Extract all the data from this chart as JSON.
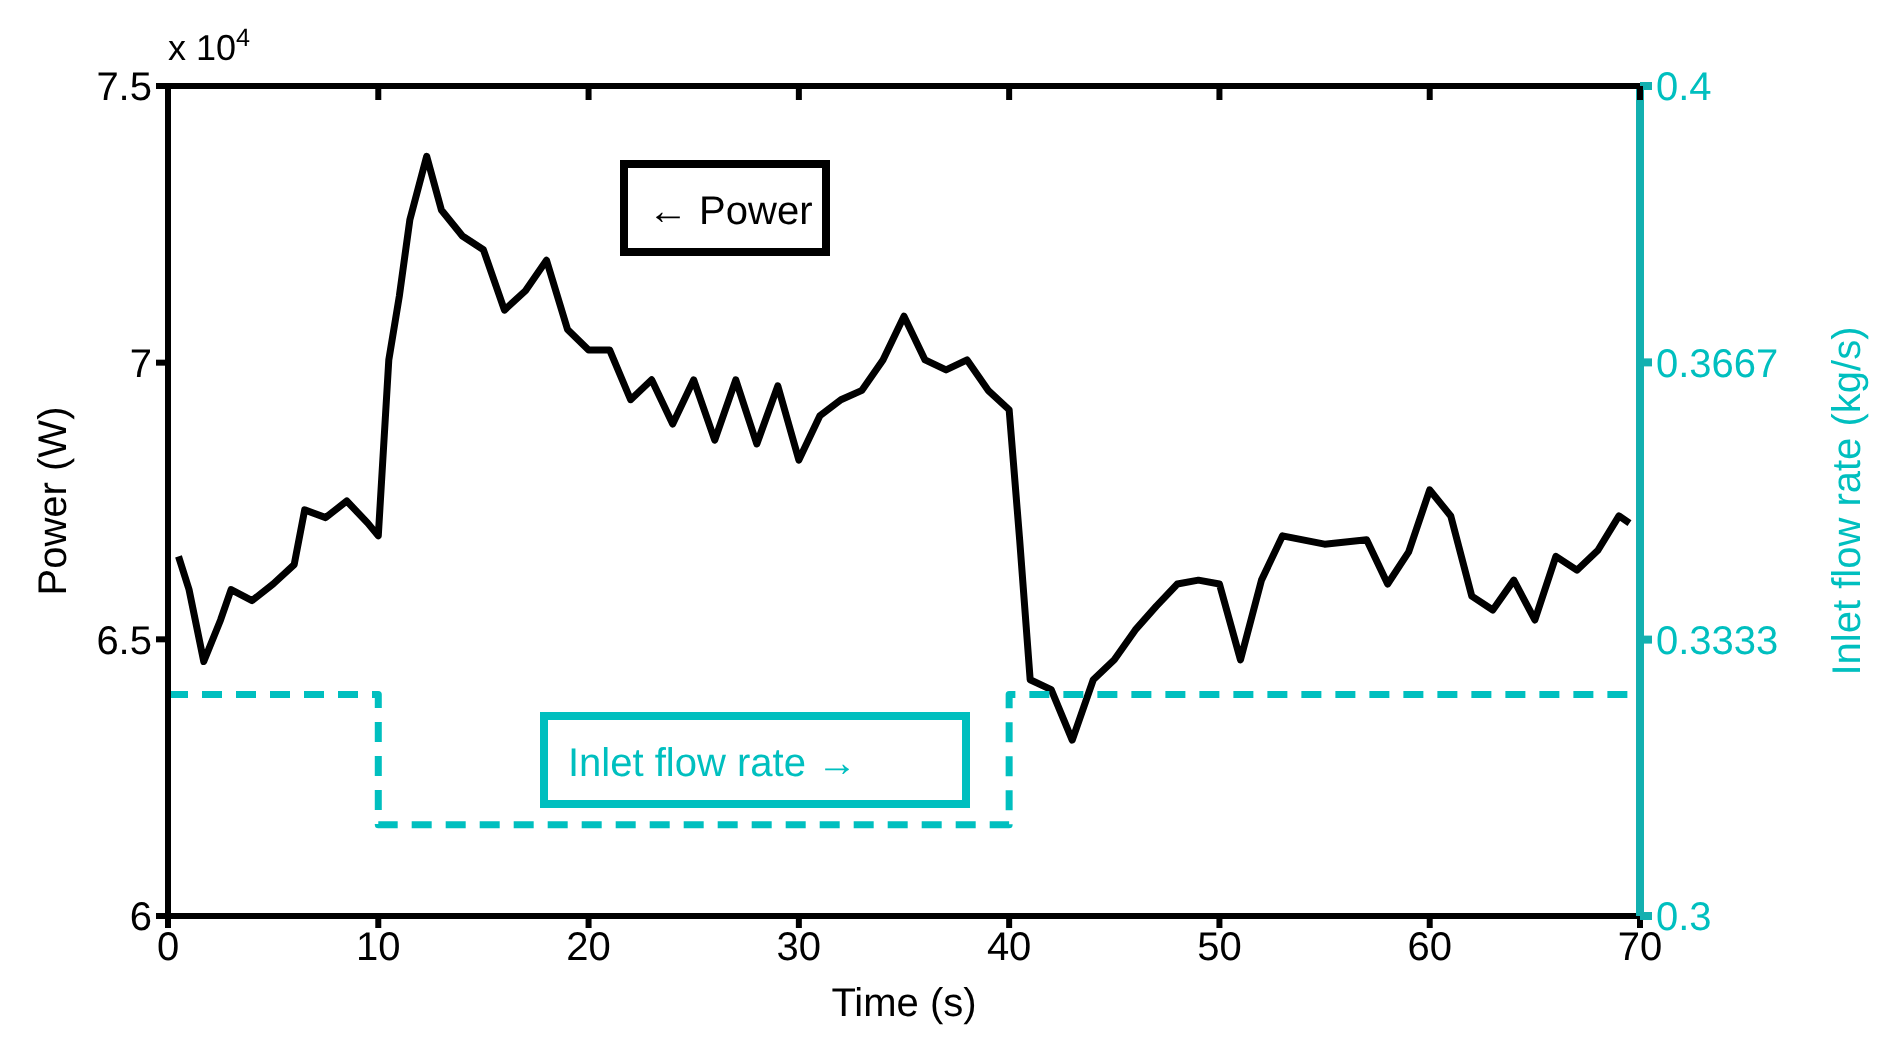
{
  "chart_data": {
    "type": "line",
    "xlabel": "Time (s)",
    "ylabel": "Power (W)",
    "y2label": "Inlet flow rate (kg/s)",
    "annotations": [
      "x 10$^{4}$"
    ],
    "xlim": [
      0,
      70
    ],
    "xticks": [
      0,
      10,
      20,
      30,
      40,
      50,
      60,
      70
    ],
    "ylim": [
      6,
      7.5
    ],
    "yticks": [
      6,
      6.5,
      7,
      7.5
    ],
    "y2lim": [
      0.3,
      0.4
    ],
    "y2ticks": [
      0.3,
      0.3333,
      0.3667,
      0.4
    ],
    "grid": false,
    "marker": "none",
    "series": [
      {
        "name": "← Power",
        "color": "#000000",
        "line_style": "solid",
        "x": [
          0.5,
          1,
          1.7,
          2.5,
          3,
          4,
          5,
          6,
          6.5,
          7.5,
          8.5,
          9.5,
          10,
          10.5,
          11,
          11.5,
          12.3,
          13,
          14,
          15,
          16,
          17,
          18,
          19,
          20,
          21,
          22,
          23,
          24,
          25,
          26,
          27,
          28,
          29,
          30,
          31,
          32,
          33,
          34,
          35,
          36,
          37,
          38,
          39,
          40,
          40.5,
          41,
          42,
          43,
          44,
          45,
          46,
          47,
          48,
          49,
          50,
          51,
          52,
          53,
          55,
          57,
          58,
          59,
          60,
          61,
          62,
          63,
          64,
          65,
          66,
          67,
          68,
          69,
          69.5
        ],
        "values": [
          6.65,
          6.59,
          6.46,
          6.535,
          6.59,
          6.57,
          6.6,
          6.635,
          6.734,
          6.72,
          6.75,
          6.71,
          6.687,
          7.005,
          7.12,
          7.258,
          7.373,
          7.276,
          7.229,
          7.204,
          7.095,
          7.13,
          7.185,
          7.06,
          7.023,
          7.023,
          6.933,
          6.969,
          6.889,
          6.969,
          6.86,
          6.969,
          6.853,
          6.958,
          6.824,
          6.904,
          6.933,
          6.95,
          7.005,
          7.084,
          7.005,
          6.987,
          7.005,
          6.95,
          6.915,
          6.68,
          6.427,
          6.409,
          6.318,
          6.427,
          6.463,
          6.517,
          6.56,
          6.6,
          6.607,
          6.6,
          6.463,
          6.607,
          6.687,
          6.672,
          6.68,
          6.6,
          6.658,
          6.77,
          6.723,
          6.578,
          6.553,
          6.607,
          6.535,
          6.65,
          6.625,
          6.661,
          6.723,
          6.71
        ]
      },
      {
        "name": "Inlet flow rate →",
        "color": "#00bfbf",
        "type": "step",
        "axis": "y2",
        "line_style": "dashed",
        "x": [
          0,
          10,
          40,
          70
        ],
        "values": [
          0.3267,
          0.311,
          0.3267,
          0.3267
        ]
      }
    ]
  }
}
